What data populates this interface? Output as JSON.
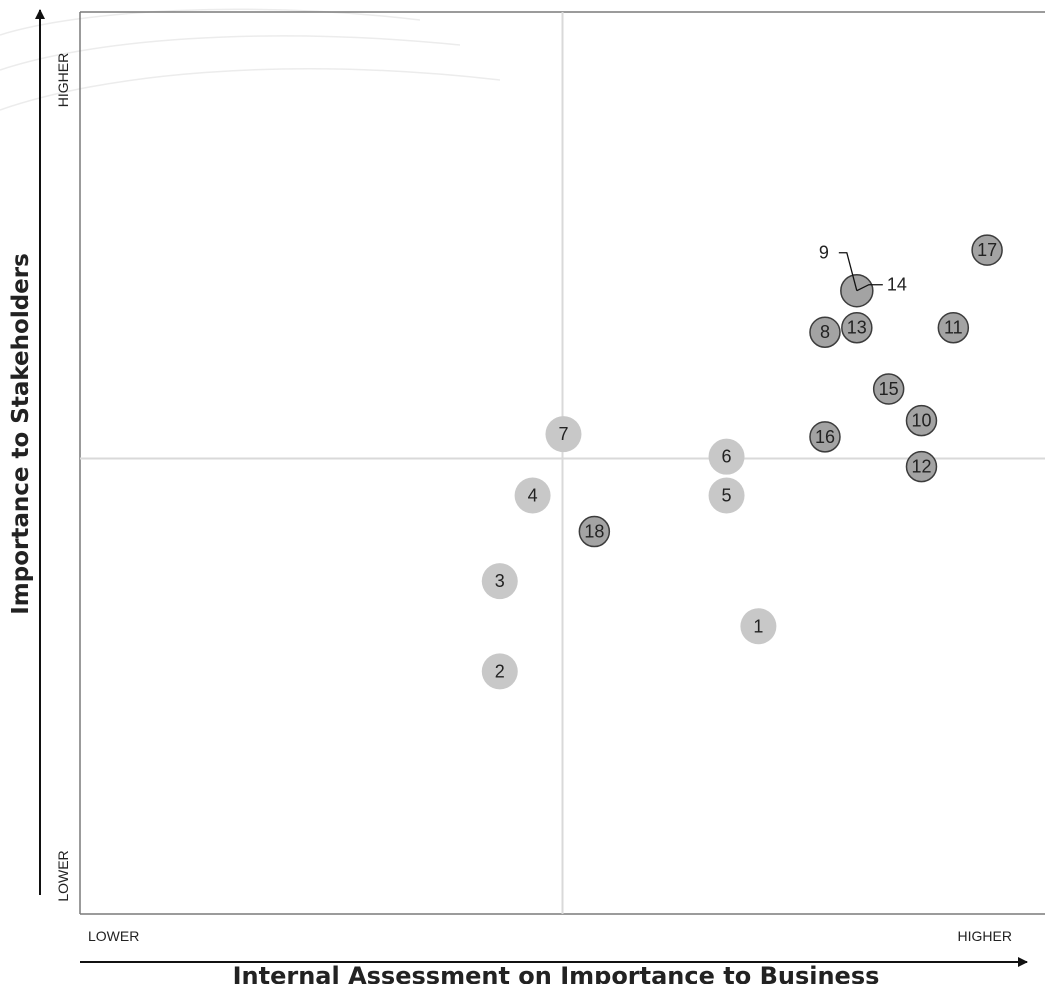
{
  "chart_data": {
    "type": "scatter",
    "title": "",
    "xlabel": "Internal Assessment on Importance to Business",
    "ylabel": "Importance to Stakeholders",
    "x_ticks": {
      "low": "LOWER",
      "high": "HIGHER"
    },
    "y_ticks": {
      "low": "LOWER",
      "high": "HIGHER"
    },
    "xlim": [
      0,
      100
    ],
    "ylim": [
      0,
      100
    ],
    "quadrant_lines": {
      "x": 50,
      "y": 50.5
    },
    "grid": false,
    "colors": {
      "light_marker": "#c8c8c8",
      "dark_marker": "#a3a3a3",
      "dark_outline": "#3c3c3c",
      "quadrant_line": "#d9d9d9",
      "axis": "#3a3a3a",
      "text": "#222222"
    },
    "points": [
      {
        "label": "1",
        "x": 70.3,
        "y": 31.9,
        "style": "light"
      },
      {
        "label": "2",
        "x": 43.5,
        "y": 26.9,
        "style": "light"
      },
      {
        "label": "3",
        "x": 43.5,
        "y": 36.9,
        "style": "light"
      },
      {
        "label": "4",
        "x": 46.9,
        "y": 46.4,
        "style": "light"
      },
      {
        "label": "5",
        "x": 67.0,
        "y": 46.4,
        "style": "light"
      },
      {
        "label": "6",
        "x": 67.0,
        "y": 50.7,
        "style": "light"
      },
      {
        "label": "7",
        "x": 50.1,
        "y": 53.2,
        "style": "light"
      },
      {
        "label": "8",
        "x": 77.2,
        "y": 64.5,
        "style": "dark"
      },
      {
        "label": "9",
        "x": 80.5,
        "y": 69.1,
        "style": "dark-large",
        "callout": "left"
      },
      {
        "label": "10",
        "x": 87.2,
        "y": 54.7,
        "style": "dark"
      },
      {
        "label": "11",
        "x": 90.5,
        "y": 65.0,
        "style": "dark"
      },
      {
        "label": "12",
        "x": 87.2,
        "y": 49.6,
        "style": "dark"
      },
      {
        "label": "13",
        "x": 80.5,
        "y": 65.0,
        "style": "dark"
      },
      {
        "label": "14",
        "x": 80.5,
        "y": 69.1,
        "style": "dark-large",
        "callout": "right"
      },
      {
        "label": "15",
        "x": 83.8,
        "y": 58.2,
        "style": "dark"
      },
      {
        "label": "16",
        "x": 77.2,
        "y": 52.9,
        "style": "dark"
      },
      {
        "label": "17",
        "x": 94.0,
        "y": 73.6,
        "style": "dark"
      },
      {
        "label": "18",
        "x": 53.3,
        "y": 42.4,
        "style": "dark"
      }
    ]
  }
}
